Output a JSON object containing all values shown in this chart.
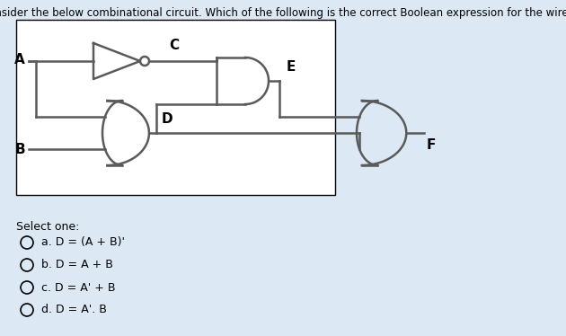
{
  "title": "Consider the below combinational circuit. Which of the following is the correct Boolean expression for the wire D?",
  "bg_color": "#dce9f5",
  "circuit_bg": "#ffffff",
  "select_one": "Select one:",
  "options": [
    "a. D = (A + B)'",
    "b. D = A + B",
    "c. D = A' + B",
    "d. D = A'. B"
  ],
  "line_color": "#5a5a5a",
  "label_color": "#000000",
  "title_fontsize": 8.5,
  "label_fontsize": 10,
  "option_fontsize": 9
}
